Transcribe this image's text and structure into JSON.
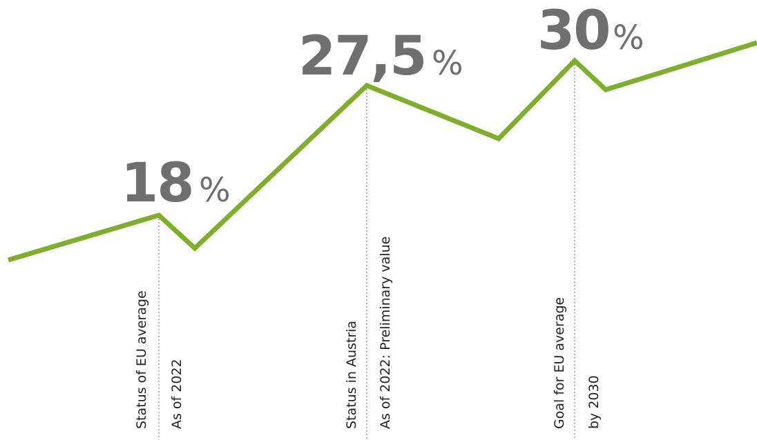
{
  "chart_data": {
    "type": "line",
    "title": "",
    "xlabel": "",
    "ylabel": "",
    "line_color": "#7fae2b",
    "value_color": "#6f6f6f",
    "highlights": [
      {
        "value": "18",
        "unit": "%",
        "label": "Status of EU average",
        "sublabel": "As of 2022"
      },
      {
        "value": "27,5",
        "unit": "%",
        "label": "Status in Austria",
        "sublabel": "As of 2022: Preliminary value"
      },
      {
        "value": "30",
        "unit": "%",
        "label": "Goal for EU average",
        "sublabel": "by 2030"
      }
    ]
  }
}
